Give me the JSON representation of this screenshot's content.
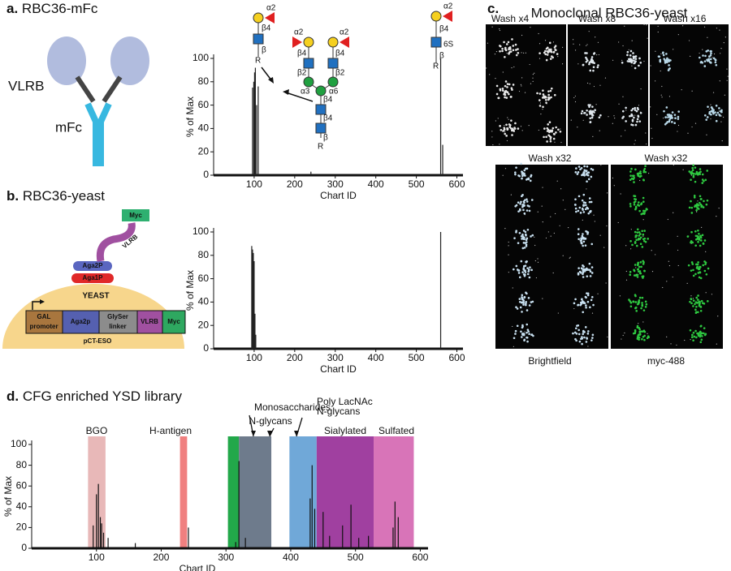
{
  "panel_a": {
    "letter": "a.",
    "title": "RBC36-mFc",
    "labels": [
      "VLRB",
      "mFc"
    ],
    "glycan_left": [
      "α2",
      "β4",
      "β",
      "R"
    ],
    "glycan_center": [
      "α2",
      "β4",
      "β2",
      "α2",
      "β4",
      "β2",
      "α3",
      "α6",
      "β4",
      "β4",
      "β",
      "R"
    ],
    "glycan_right": [
      "α2",
      "β4",
      "6S",
      "β",
      "R"
    ]
  },
  "panel_b": {
    "letter": "b.",
    "title": "RBC36-yeast",
    "labels": {
      "myc_tag": "Myc",
      "vlrb_display": "VLRB",
      "aga2": "Aga2P",
      "aga1": "Aga1P",
      "cell": "YEAST",
      "promoter": [
        "GAL",
        "promoter"
      ],
      "aga2p": "Aga2p",
      "linker": [
        "GlySer",
        "linker"
      ],
      "vlrb": "VLRB",
      "myc": "Myc",
      "plasmid": "pCT-ESO"
    }
  },
  "panel_c": {
    "letter": "c.",
    "title": "Monoclonal RBC36-yeast",
    "top_labels": [
      "Wash x4",
      "Wash x8",
      "Wash x16"
    ],
    "bottom_labels": [
      "Wash x32",
      "Wash x32"
    ],
    "channel_labels": [
      "Brightfield",
      "myc-488"
    ]
  },
  "panel_d": {
    "letter": "d.",
    "title": "CFG enriched YSD library"
  },
  "chart_data": [
    {
      "type": "bar",
      "xlabel": "Chart ID",
      "ylabel": "% of Max",
      "color": "#222222",
      "xlim": [
        0,
        615
      ],
      "ylim": [
        0,
        100
      ],
      "xticks": [
        100,
        200,
        300,
        400,
        500,
        600
      ],
      "yticks": [
        0,
        20,
        40,
        60,
        80,
        100
      ],
      "x": [
        96,
        99,
        101,
        103,
        106,
        110,
        240,
        560,
        565
      ],
      "values": [
        75,
        80,
        88,
        92,
        60,
        76,
        3,
        100,
        26
      ]
    },
    {
      "type": "bar",
      "xlabel": "Chart ID",
      "ylabel": "% of Max",
      "color": "#222222",
      "xlim": [
        0,
        615
      ],
      "ylim": [
        0,
        100
      ],
      "xticks": [
        100,
        200,
        300,
        400,
        500,
        600
      ],
      "yticks": [
        0,
        20,
        40,
        60,
        80,
        100
      ],
      "x": [
        94,
        96,
        98,
        100,
        102,
        104,
        560
      ],
      "values": [
        88,
        85,
        82,
        75,
        30,
        12,
        100
      ]
    },
    {
      "type": "bar",
      "xlabel": "Chart ID",
      "ylabel": "% of Max",
      "color": "#111111",
      "xlim": [
        0,
        612
      ],
      "ylim": [
        0,
        100
      ],
      "xticks": [
        100,
        200,
        300,
        400,
        500,
        600
      ],
      "yticks": [
        0,
        20,
        40,
        60,
        80,
        100
      ],
      "regions": [
        {
          "label": [
            "BGO"
          ],
          "start": 87,
          "end": 114,
          "color": "#e8b8b8"
        },
        {
          "label": [
            "H-antigen"
          ],
          "start": 229,
          "end": 240,
          "color": "#f08080"
        },
        {
          "label": [
            "Monosaccharides"
          ],
          "start": 303,
          "end": 320,
          "color": "#22a84a"
        },
        {
          "label": [
            "N-glycans"
          ],
          "start": 320,
          "end": 370,
          "color": "#6e7b8c"
        },
        {
          "label": [
            "Poly LacNAc",
            "N-glycans"
          ],
          "start": 398,
          "end": 440,
          "color": "#70a8d8"
        },
        {
          "label": [
            "Sialylated"
          ],
          "start": 440,
          "end": 528,
          "color": "#a040a0"
        },
        {
          "label": [
            "Sulfated"
          ],
          "start": 528,
          "end": 590,
          "color": "#d874b8"
        }
      ],
      "x": [
        95,
        100,
        103,
        106,
        108,
        111,
        118,
        160,
        242,
        315,
        320,
        330,
        430,
        433,
        437,
        450,
        460,
        480,
        493,
        505,
        520,
        558,
        561,
        566
      ],
      "values": [
        22,
        52,
        62,
        30,
        24,
        15,
        10,
        5,
        20,
        6,
        84,
        10,
        48,
        80,
        38,
        35,
        12,
        22,
        42,
        10,
        12,
        20,
        45,
        30
      ]
    }
  ]
}
